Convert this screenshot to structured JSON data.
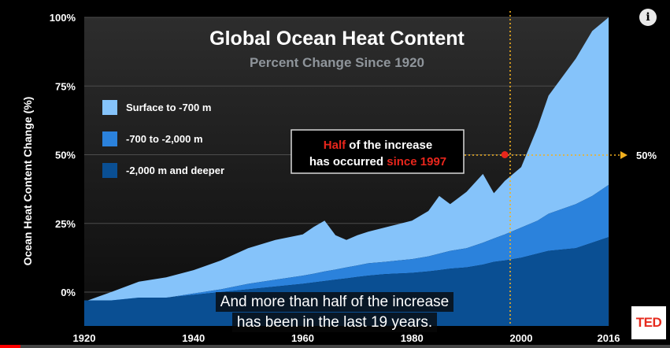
{
  "info_icon": "i",
  "ted_logo": "TED",
  "video_progress_percent": 3,
  "caption": {
    "line1": "And more than half of the increase",
    "line2": "has been in the last 19 years."
  },
  "colors": {
    "surface": "#85c3fa",
    "mid": "#2b82dc",
    "deep": "#0a4f93",
    "annotation": "#f2b01e",
    "highlight": "#e8261c"
  },
  "chart_data": {
    "type": "area",
    "stacked": true,
    "title": "Global Ocean Heat Content",
    "subtitle": "Percent Change Since 1920",
    "xlabel": "",
    "ylabel": "Ocean Heat Content Change (%)",
    "xlim": [
      1920,
      2016
    ],
    "ylim": [
      -10,
      100
    ],
    "x_ticks": [
      "1920",
      "1940",
      "1960",
      "1980",
      "2000",
      "2016"
    ],
    "y_ticks": [
      "0%",
      "25%",
      "50%",
      "75%",
      "100%"
    ],
    "grid": true,
    "legend_position": "left",
    "x": [
      1920,
      1925,
      1930,
      1935,
      1940,
      1945,
      1950,
      1955,
      1960,
      1962,
      1964,
      1966,
      1968,
      1970,
      1972,
      1975,
      1980,
      1983,
      1985,
      1987,
      1990,
      1993,
      1995,
      1997,
      2000,
      2003,
      2005,
      2010,
      2013,
      2016
    ],
    "series": [
      {
        "name": "-2,000 m and deeper",
        "values": [
          -3,
          -3,
          -2,
          -2,
          -1,
          0,
          1,
          2,
          3,
          3.5,
          4,
          4.5,
          5,
          5.5,
          6,
          6.5,
          7,
          7.5,
          8,
          8.5,
          9,
          10,
          11,
          11.5,
          12.5,
          14,
          15,
          16,
          18,
          20
        ]
      },
      {
        "name": "-700 to -2,000 m",
        "values": [
          -0.5,
          -0.4,
          -0.2,
          -0.1,
          0.5,
          1,
          2,
          2.5,
          3,
          3.2,
          3.5,
          3.7,
          4,
          4.2,
          4.5,
          4.5,
          5,
          5.5,
          6,
          6.5,
          7,
          8,
          8.5,
          9.5,
          11,
          12,
          13.5,
          16,
          17,
          19
        ]
      },
      {
        "name": "Surface to -700 m",
        "values": [
          0,
          3.5,
          6,
          7.5,
          8.5,
          10.5,
          13,
          14.5,
          15,
          17,
          18.5,
          12.5,
          10,
          11,
          11.5,
          12.5,
          14,
          16.5,
          21,
          17,
          20.5,
          25,
          16.5,
          19.5,
          22,
          34,
          43,
          53,
          60,
          61
        ]
      }
    ],
    "annotation": {
      "text_parts": [
        "Half",
        " of the increase",
        "has occurred ",
        "since 1997"
      ],
      "point": {
        "x": 1997,
        "y": 50
      },
      "line_label": "50%"
    }
  }
}
